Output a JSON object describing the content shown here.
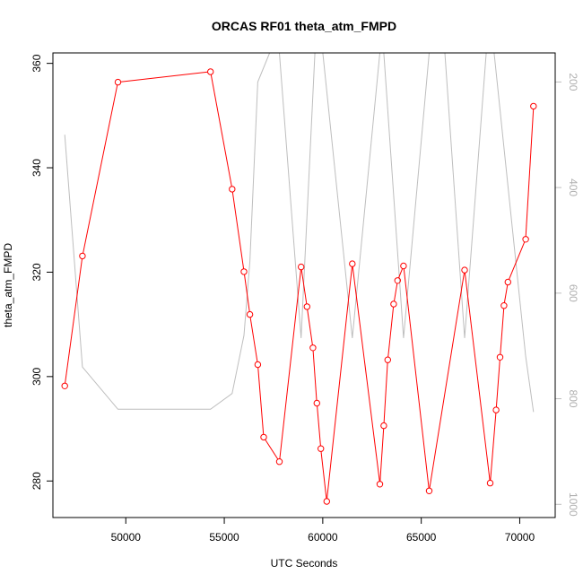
{
  "chart_data": {
    "type": "line",
    "title": "ORCAS RF01 theta_atm_FMPD",
    "xlabel": "UTC Seconds",
    "ylabel": "theta_atm_FMPD",
    "xlim": [
      46300,
      71800
    ],
    "ylim": [
      273,
      362
    ],
    "y2lim": [
      1025,
      145
    ],
    "x_ticks": [
      50000,
      55000,
      60000,
      65000,
      70000
    ],
    "y_ticks": [
      280,
      300,
      320,
      340,
      360
    ],
    "y2_ticks": [
      200,
      400,
      600,
      800,
      1000
    ],
    "grid": false,
    "colors": {
      "primary": "#ff0000",
      "secondary": "#bebebe"
    },
    "series": [
      {
        "axis": "left",
        "marker": "open-circle",
        "points": [
          [
            46900,
            298.2
          ],
          [
            47800,
            323.1
          ],
          [
            49600,
            356.4
          ],
          [
            54300,
            358.4
          ],
          [
            55400,
            335.9
          ],
          [
            56000,
            320.1
          ],
          [
            56300,
            311.9
          ],
          [
            56700,
            302.3
          ],
          [
            57000,
            288.4
          ],
          [
            57800,
            283.7
          ],
          [
            58900,
            321.0
          ],
          [
            59200,
            313.4
          ],
          [
            59500,
            305.5
          ],
          [
            59700,
            294.9
          ],
          [
            59900,
            286.2
          ],
          [
            60200,
            276.1
          ],
          [
            61500,
            321.6
          ],
          [
            62900,
            279.4
          ],
          [
            63100,
            290.6
          ],
          [
            63300,
            303.2
          ],
          [
            63600,
            313.9
          ],
          [
            63800,
            318.4
          ],
          [
            64100,
            321.2
          ],
          [
            65400,
            278.1
          ],
          [
            67200,
            320.4
          ],
          [
            68500,
            279.6
          ],
          [
            68800,
            293.6
          ],
          [
            69000,
            303.7
          ],
          [
            69200,
            313.6
          ],
          [
            69400,
            318.1
          ],
          [
            70300,
            326.3
          ],
          [
            70700,
            351.8
          ]
        ]
      },
      {
        "axis": "right",
        "points": [
          [
            46900,
            300
          ],
          [
            47800,
            740
          ],
          [
            49600,
            820
          ],
          [
            54300,
            820
          ],
          [
            55400,
            790
          ],
          [
            56000,
            680
          ],
          [
            56300,
            540
          ],
          [
            56700,
            200
          ],
          [
            57300,
            145
          ],
          [
            57800,
            145
          ],
          [
            58900,
            685
          ],
          [
            59600,
            145
          ],
          [
            60000,
            145
          ],
          [
            61500,
            685
          ],
          [
            62900,
            145
          ],
          [
            63100,
            145
          ],
          [
            64100,
            685
          ],
          [
            65400,
            145
          ],
          [
            66200,
            145
          ],
          [
            67200,
            685
          ],
          [
            68300,
            145
          ],
          [
            68700,
            145
          ],
          [
            70300,
            720
          ],
          [
            70700,
            825
          ]
        ]
      }
    ]
  }
}
